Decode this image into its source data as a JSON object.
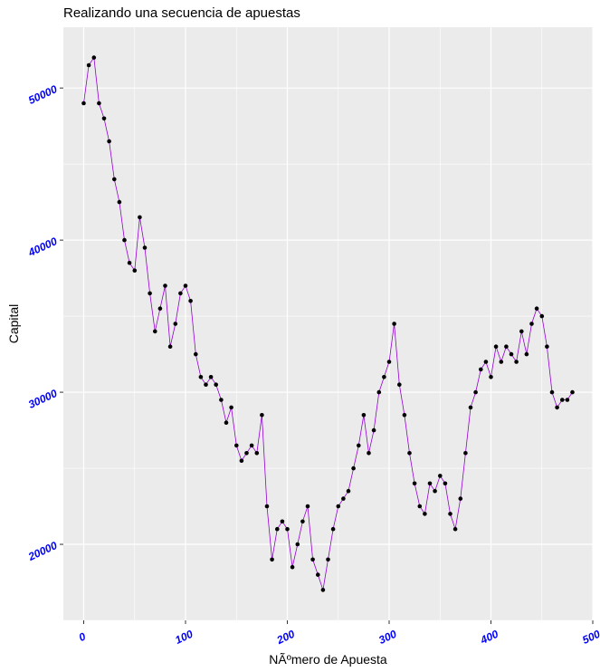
{
  "chart_data": {
    "type": "line",
    "title": "Realizando una secuencia de apuestas",
    "xlabel": "NÃºmero de Apuesta",
    "ylabel": "Capital",
    "xlim": [
      -20,
      500
    ],
    "ylim": [
      15000,
      54000
    ],
    "x_ticks": [
      0,
      100,
      200,
      300,
      400,
      500
    ],
    "y_ticks": [
      20000,
      30000,
      40000,
      50000
    ],
    "x_tick_labels": [
      "0",
      "100",
      "200",
      "300",
      "400",
      "500"
    ],
    "y_tick_labels": [
      "20000",
      "30000",
      "40000",
      "50000"
    ],
    "grid": true,
    "panel_color": "#ebebeb",
    "grid_color": "#ffffff",
    "line_color": "#9400d3",
    "point_color": "#000000",
    "tick_label_color": "#0000ff",
    "series": [
      {
        "x": [
          0,
          5,
          10,
          15,
          20,
          25,
          30,
          35,
          40,
          45,
          50,
          55,
          60,
          65,
          70,
          75,
          80,
          85,
          90,
          95,
          100,
          105,
          110,
          115,
          120,
          125,
          130,
          135,
          140,
          145,
          150,
          155,
          160,
          165,
          170,
          175,
          180,
          185,
          190,
          195,
          200,
          205,
          210,
          215,
          220,
          225,
          230,
          235,
          240,
          245,
          250,
          255,
          260,
          265,
          270,
          275,
          280,
          285,
          290,
          295,
          300,
          305,
          310,
          315,
          320,
          325,
          330,
          335,
          340,
          345,
          350,
          355,
          360,
          365,
          370,
          375,
          380,
          385,
          390,
          395,
          400,
          405,
          410,
          415,
          420,
          425,
          430,
          435,
          440,
          445,
          450,
          455,
          460,
          465,
          470,
          475,
          480
        ],
        "y": [
          49000,
          51500,
          52000,
          49000,
          48000,
          46500,
          44000,
          42500,
          40000,
          38500,
          38000,
          41500,
          39500,
          36500,
          34000,
          35500,
          37000,
          33000,
          34500,
          36500,
          37000,
          36000,
          32500,
          31000,
          30500,
          31000,
          30500,
          29500,
          28000,
          29000,
          26500,
          25500,
          26000,
          26500,
          26000,
          28500,
          22500,
          19000,
          21000,
          21500,
          21000,
          18500,
          20000,
          21500,
          22500,
          19000,
          18000,
          17000,
          19000,
          21000,
          22500,
          23000,
          23500,
          25000,
          26500,
          28500,
          26000,
          27500,
          30000,
          31000,
          32000,
          34500,
          30500,
          28500,
          26000,
          24000,
          22500,
          22000,
          24000,
          23500,
          24500,
          24000,
          22000,
          21000,
          23000,
          26000,
          29000,
          30000,
          31500,
          32000,
          31000,
          33000,
          32000,
          33000,
          32500,
          32000,
          34000,
          32500,
          34500,
          35500,
          35000,
          33000,
          30000,
          29000,
          29500,
          29500,
          30000
        ]
      }
    ]
  }
}
